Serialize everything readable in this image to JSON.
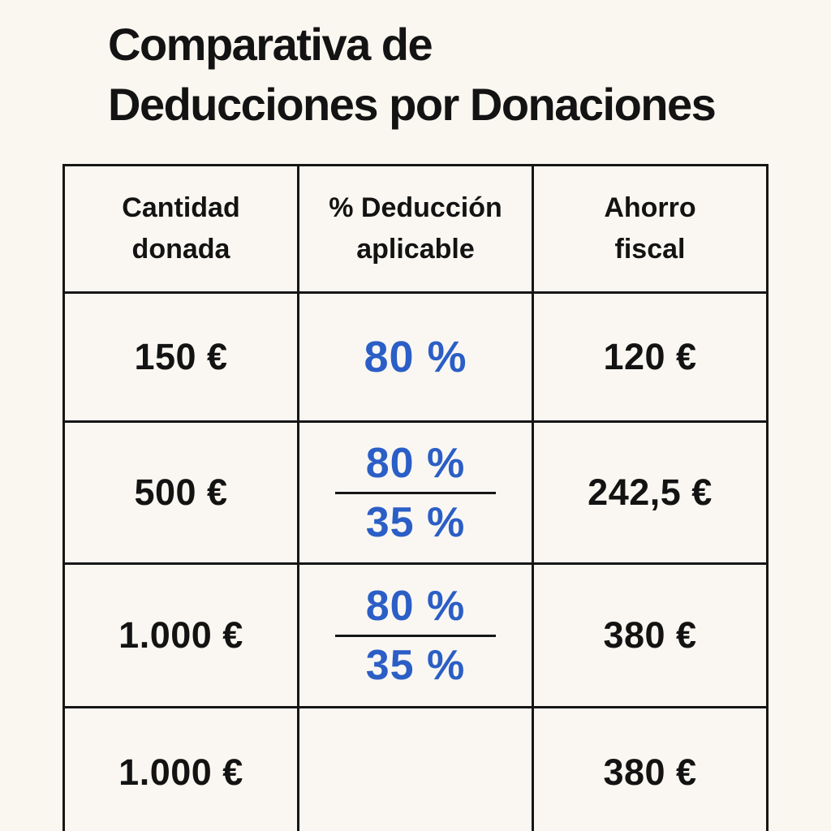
{
  "title": "Comparativa de\nDeducciones por Donaciones",
  "colors": {
    "background": "#FAF6F0",
    "cell_background": "#FAF7F2",
    "highlight_cell": "#F8EDDC",
    "accent_blue": "#2B5EC6",
    "border": "#161616",
    "text": "#131313"
  },
  "table": {
    "headers": {
      "amount": "Cantidad\ndonada",
      "deduction": "% Deducción\naplicable",
      "saving": "Ahorro\nfiscal"
    },
    "rows": [
      {
        "amount": "150 €",
        "deduction": "80 %",
        "saving": "120 €",
        "highlighted": false
      },
      {
        "amount": "500 €",
        "deduction_top": "80 %",
        "deduction_bottom": "35 %",
        "saving": "242,5 €",
        "highlighted": true
      },
      {
        "amount": "1.000 €",
        "deduction_top": "80 %",
        "deduction_bottom": "35 %",
        "saving": "380 €",
        "highlighted": true
      },
      {
        "amount": "1.000 €",
        "deduction": "",
        "saving": "380 €",
        "highlighted": true
      }
    ]
  },
  "chart_data": {
    "type": "table",
    "title": "Comparativa de Deducciones por Donaciones",
    "columns": [
      "Cantidad donada",
      "% Deducción aplicable",
      "Ahorro fiscal"
    ],
    "rows": [
      [
        "150 €",
        "80 %",
        "120 €"
      ],
      [
        "500 €",
        "80 % / 35 %",
        "242,5 €"
      ],
      [
        "1.000 €",
        "80 % / 35 %",
        "380 €"
      ],
      [
        "1.000 €",
        "",
        "380 €"
      ]
    ],
    "notes": "Fraction cells show 80 % above a horizontal line and 35 % below it; last row's deduction cell is empty (clipped at image bottom)."
  }
}
